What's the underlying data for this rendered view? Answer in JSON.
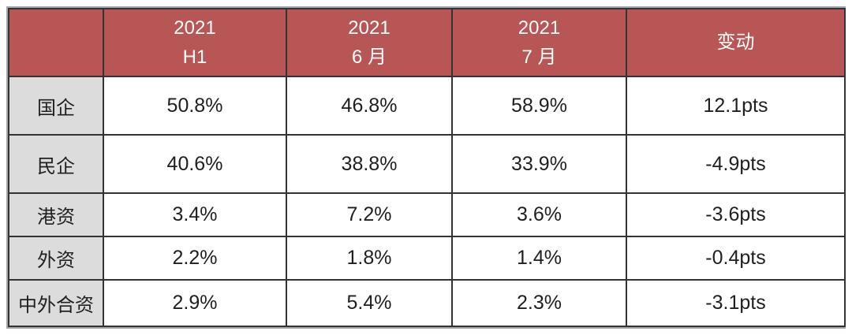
{
  "chart_data": {
    "type": "table",
    "columns": [
      "",
      "2021 H1",
      "2021 6月",
      "2021 7月",
      "变动"
    ],
    "rows": [
      [
        "国企",
        "50.8%",
        "46.8%",
        "58.9%",
        "12.1pts"
      ],
      [
        "民企",
        "40.6%",
        "38.8%",
        "33.9%",
        "-4.9pts"
      ],
      [
        "港资",
        "3.4%",
        "7.2%",
        "3.6%",
        "-3.6pts"
      ],
      [
        "外资",
        "2.2%",
        "1.8%",
        "1.4%",
        "-0.4pts"
      ],
      [
        "中外合资",
        "2.9%",
        "5.4%",
        "2.3%",
        "-3.1pts"
      ]
    ]
  },
  "table": {
    "header": {
      "corner": "",
      "col1": {
        "line1": "2021",
        "line2": "H1"
      },
      "col2": {
        "line1": "2021",
        "line2": "6 月"
      },
      "col3": {
        "line1": "2021",
        "line2": "7 月"
      },
      "col4": {
        "line1": "变动",
        "line2": ""
      }
    },
    "rows": [
      {
        "label": "国企",
        "values": [
          "50.8%",
          "46.8%",
          "58.9%",
          "12.1pts"
        ]
      },
      {
        "label": "民企",
        "values": [
          "40.6%",
          "38.8%",
          "33.9%",
          "-4.9pts"
        ]
      },
      {
        "label": "港资",
        "values": [
          "3.4%",
          "7.2%",
          "3.6%",
          "-3.6pts"
        ]
      },
      {
        "label": "外资",
        "values": [
          "2.2%",
          "1.8%",
          "1.4%",
          "-0.4pts"
        ]
      },
      {
        "label": "中外合资",
        "values": [
          "2.9%",
          "5.4%",
          "2.3%",
          "-3.1pts"
        ]
      }
    ]
  },
  "colors": {
    "header_bg": "#b85555",
    "header_text": "#ffffff",
    "label_bg": "#dcdcdc",
    "body_text": "#1f1f1f",
    "grid_border": "#333333",
    "outer_border": "#a6a6a6"
  }
}
